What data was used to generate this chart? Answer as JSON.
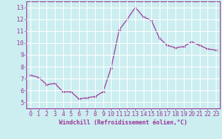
{
  "x": [
    0,
    1,
    2,
    3,
    4,
    5,
    6,
    7,
    8,
    9,
    10,
    11,
    12,
    13,
    14,
    15,
    16,
    17,
    18,
    19,
    20,
    21,
    22,
    23
  ],
  "y": [
    7.3,
    7.1,
    6.5,
    6.6,
    5.9,
    5.9,
    5.3,
    5.4,
    5.5,
    5.9,
    7.9,
    11.1,
    12.0,
    13.0,
    12.2,
    11.9,
    10.4,
    9.8,
    9.6,
    9.7,
    10.1,
    9.8,
    9.5,
    9.4
  ],
  "line_color": "#993399",
  "marker": "D",
  "marker_size": 1.8,
  "bg_color": "#cceef0",
  "grid_color": "#ffffff",
  "axis_color": "#993399",
  "xlabel": "Windchill (Refroidissement éolien,°C)",
  "xlabel_fontsize": 6.0,
  "tick_fontsize": 6.0,
  "xlim": [
    -0.5,
    23.5
  ],
  "ylim": [
    4.5,
    13.5
  ],
  "yticks": [
    5,
    6,
    7,
    8,
    9,
    10,
    11,
    12,
    13
  ],
  "xticks": [
    0,
    1,
    2,
    3,
    4,
    5,
    6,
    7,
    8,
    9,
    10,
    11,
    12,
    13,
    14,
    15,
    16,
    17,
    18,
    19,
    20,
    21,
    22,
    23
  ]
}
